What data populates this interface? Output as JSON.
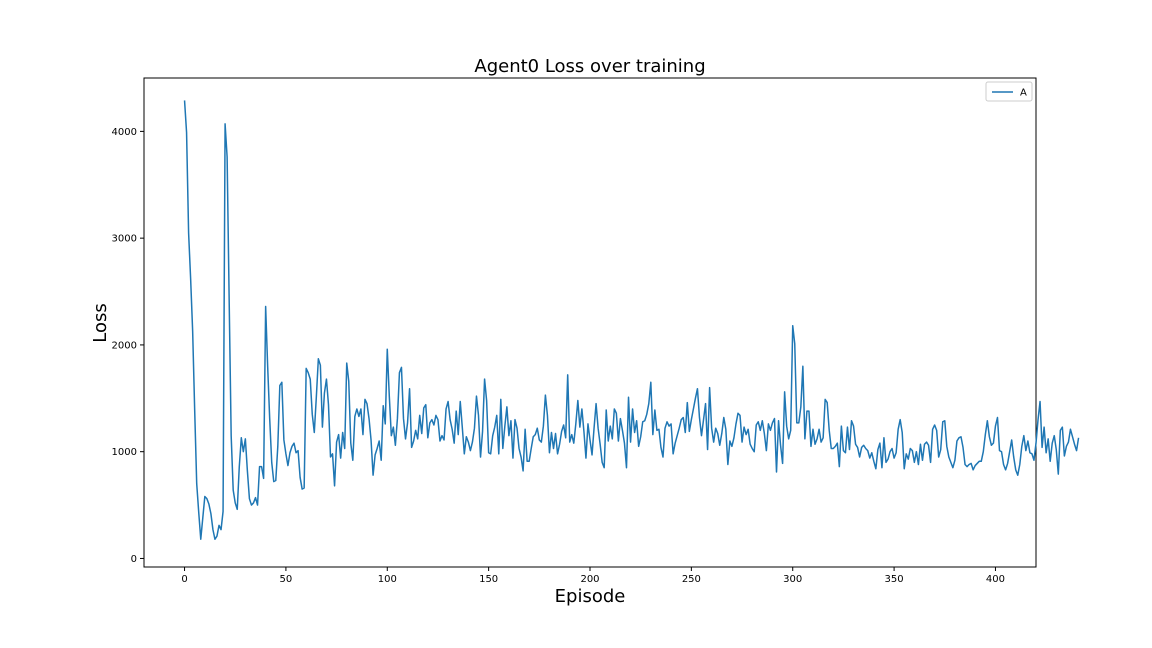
{
  "chart_data": {
    "type": "line",
    "title": "Agent0 Loss over training",
    "xlabel": "Episode",
    "ylabel": "Loss",
    "xlim": [
      -20,
      420
    ],
    "ylim": [
      -80,
      4500
    ],
    "xticks": [
      0,
      50,
      100,
      150,
      200,
      250,
      300,
      350,
      400
    ],
    "yticks": [
      0,
      1000,
      2000,
      3000,
      4000
    ],
    "grid": false,
    "legend": {
      "placement": "top-right",
      "entries": [
        "A"
      ]
    },
    "series_color": "#1f77b4",
    "series": [
      {
        "name": "A",
        "x_start": 0,
        "x_step": 1,
        "values": [
          4290,
          3990,
          3050,
          2620,
          2130,
          1390,
          700,
          430,
          180,
          380,
          580,
          560,
          510,
          420,
          270,
          180,
          210,
          310,
          270,
          440,
          4070,
          3760,
          2430,
          1150,
          640,
          520,
          460,
          860,
          1130,
          1000,
          1120,
          820,
          560,
          500,
          520,
          570,
          500,
          860,
          860,
          750,
          2360,
          1800,
          1310,
          900,
          720,
          730,
          1050,
          1620,
          1650,
          1110,
          980,
          870,
          990,
          1050,
          1080,
          990,
          1010,
          760,
          650,
          660,
          1780,
          1740,
          1680,
          1350,
          1180,
          1510,
          1870,
          1810,
          1230,
          1550,
          1680,
          1440,
          950,
          980,
          680,
          1090,
          1160,
          940,
          1180,
          1030,
          1830,
          1660,
          1080,
          920,
          1330,
          1400,
          1330,
          1400,
          1160,
          1490,
          1450,
          1310,
          1110,
          780,
          970,
          1030,
          1100,
          920,
          1430,
          1260,
          1960,
          1520,
          1150,
          1230,
          1060,
          1310,
          1740,
          1790,
          1310,
          1120,
          1270,
          1590,
          1040,
          1100,
          1200,
          1120,
          1340,
          1170,
          1410,
          1440,
          1130,
          1270,
          1300,
          1250,
          1340,
          1300,
          1100,
          1150,
          1110,
          1400,
          1470,
          1300,
          1210,
          1080,
          1380,
          1160,
          1470,
          1230,
          980,
          1140,
          1090,
          1010,
          1090,
          1220,
          1520,
          1340,
          950,
          1190,
          1680,
          1480,
          990,
          980,
          1150,
          1230,
          1340,
          980,
          1490,
          1030,
          1240,
          1420,
          1150,
          1290,
          940,
          1300,
          1220,
          1030,
          950,
          820,
          1210,
          910,
          910,
          1030,
          1140,
          1160,
          1220,
          1110,
          1090,
          1240,
          1530,
          1340,
          990,
          1180,
          1030,
          1170,
          980,
          1070,
          1190,
          1250,
          1130,
          1720,
          1090,
          1160,
          1080,
          1260,
          1480,
          1230,
          1400,
          1190,
          940,
          1260,
          1110,
          970,
          1220,
          1450,
          1220,
          1070,
          900,
          850,
          1390,
          1100,
          1240,
          1120,
          1400,
          1360,
          1100,
          1310,
          1200,
          1080,
          850,
          1510,
          1090,
          1400,
          1180,
          1290,
          1050,
          1140,
          1280,
          1290,
          1350,
          1450,
          1650,
          1160,
          1390,
          1200,
          1210,
          1040,
          950,
          1220,
          1280,
          1240,
          1260,
          980,
          1080,
          1150,
          1220,
          1300,
          1320,
          1180,
          1460,
          1190,
          1300,
          1400,
          1500,
          1590,
          1320,
          1150,
          1300,
          1450,
          1020,
          1600,
          1220,
          1090,
          1220,
          1170,
          1060,
          1170,
          1320,
          1210,
          880,
          1100,
          1050,
          1130,
          1260,
          1360,
          1340,
          1090,
          1230,
          1160,
          1210,
          1070,
          1030,
          1000,
          1250,
          1280,
          1200,
          1290,
          1170,
          1010,
          1260,
          1200,
          1270,
          1310,
          810,
          1290,
          1060,
          890,
          1560,
          1240,
          1120,
          1200,
          2180,
          2010,
          1270,
          1270,
          1420,
          1800,
          1120,
          1380,
          1380,
          1050,
          1210,
          1070,
          1120,
          1210,
          1090,
          1130,
          1490,
          1460,
          1200,
          1030,
          1030,
          1050,
          1080,
          860,
          1240,
          1010,
          990,
          1230,
          1020,
          1290,
          1240,
          1070,
          1040,
          950,
          1040,
          1060,
          1030,
          1010,
          940,
          990,
          910,
          840,
          1020,
          1080,
          850,
          1130,
          900,
          930,
          1000,
          1030,
          940,
          990,
          1210,
          1300,
          1180,
          840,
          980,
          930,
          1030,
          1010,
          900,
          1000,
          880,
          1070,
          920,
          1070,
          1090,
          1060,
          900,
          1210,
          1250,
          1200,
          950,
          1020,
          1280,
          1290,
          1050,
          950,
          900,
          850,
          920,
          1100,
          1130,
          1140,
          1040,
          880,
          860,
          880,
          890,
          830,
          870,
          890,
          910,
          910,
          1000,
          1160,
          1290,
          1140,
          1060,
          1080,
          1240,
          1320,
          1010,
          1000,
          880,
          830,
          890,
          1000,
          1110,
          950,
          830,
          780,
          880,
          1050,
          1150,
          1010,
          1100,
          990,
          980,
          920,
          1080,
          1300,
          1470,
          1040,
          1230,
          990,
          1120,
          910,
          1080,
          1150,
          1020,
          790,
          1200,
          1230,
          960,
          1050,
          1090,
          1210,
          1140,
          1070,
          1010,
          1130
        ]
      }
    ]
  }
}
